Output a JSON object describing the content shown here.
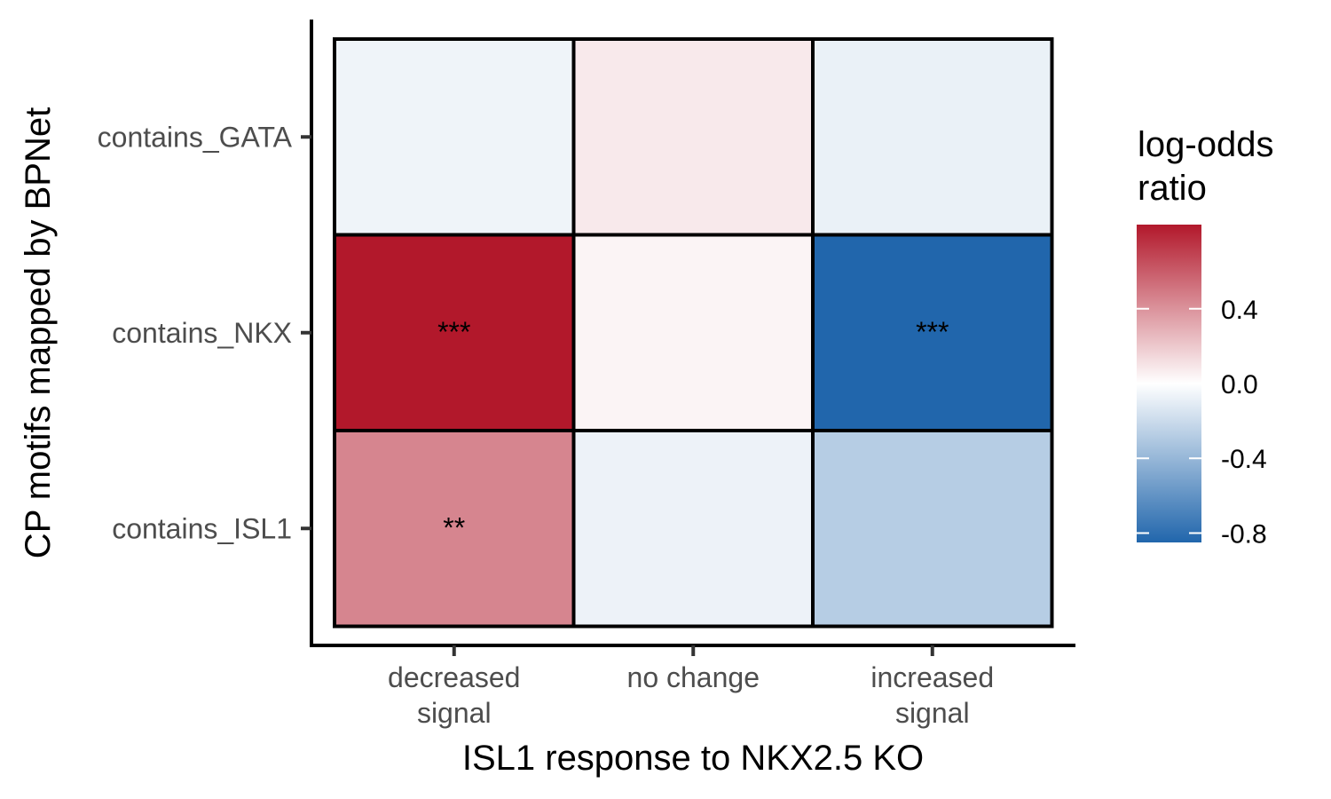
{
  "chart_data": {
    "type": "heatmap",
    "title": "",
    "xlabel": "ISL1 response to NKX2.5 KO",
    "ylabel": "CP motifs mapped by BPNet",
    "x_categories": [
      [
        "decreased",
        "signal"
      ],
      [
        "no change"
      ],
      [
        "increased",
        "signal"
      ]
    ],
    "y_categories": [
      "contains_GATA",
      "contains_NKX",
      "contains_ISL1"
    ],
    "values": [
      [
        -0.06,
        0.08,
        -0.08
      ],
      [
        0.85,
        0.04,
        -0.85
      ],
      [
        0.45,
        -0.07,
        -0.28
      ]
    ],
    "annotations": [
      [
        "",
        "",
        ""
      ],
      [
        "***",
        "",
        "***"
      ],
      [
        "**",
        "",
        ""
      ]
    ],
    "legend": {
      "title": [
        "log-odds",
        "ratio"
      ],
      "ticks": [
        0.4,
        0.0,
        -0.4,
        -0.8
      ],
      "tick_labels": [
        "0.4",
        "0.0",
        "-0.4",
        "-0.8"
      ],
      "range": [
        -0.85,
        0.85
      ],
      "placement": "right",
      "colors": {
        "low": "#2166ac",
        "mid": "#ffffff",
        "high": "#b2182b"
      }
    },
    "grid": false
  }
}
